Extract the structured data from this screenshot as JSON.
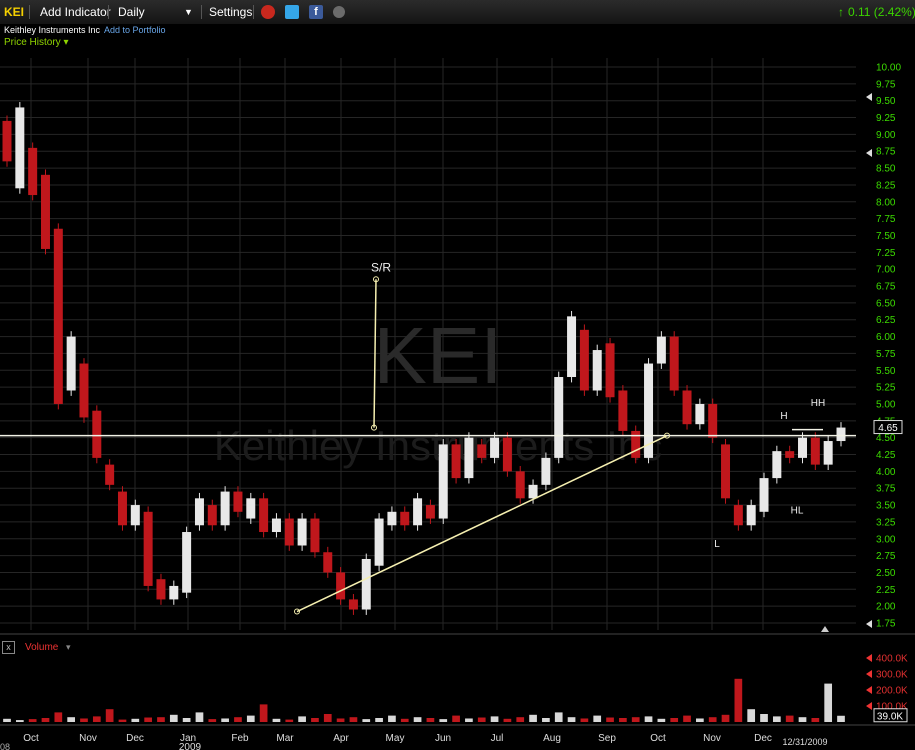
{
  "toolbar": {
    "ticker": "KEI",
    "add_indicator": "Add Indicator",
    "period": "Daily",
    "settings": "Settings",
    "change": "0.11 (2.42%)"
  },
  "company": {
    "name": "Keithley Instruments Inc",
    "add_portfolio": "Add to Portfolio"
  },
  "panel": {
    "price_history": "Price History ▾",
    "volume": "Volume",
    "volume_arrow": "▾",
    "close_icon": "x"
  },
  "watermark": {
    "symbol": "KEI",
    "name": "Keithley Instruments Inc"
  },
  "colors": {
    "up": "#e8e8e8",
    "down": "#c0171c",
    "price_axis": "#3cdc00",
    "volume_axis": "#e03030",
    "trend": "#f5efb0",
    "grid": "#262626"
  },
  "chart_data": {
    "type": "candlestick",
    "x_tick_labels": [
      "Oct",
      "Nov",
      "Dec",
      "Jan",
      "Feb",
      "Mar",
      "Apr",
      "May",
      "Jun",
      "Jul",
      "Aug",
      "Sep",
      "Oct",
      "Nov",
      "Dec"
    ],
    "x_sublabel": "2009",
    "x_left_label": "08",
    "date_label": "12/31/2009",
    "y_ticks": [
      "1.75",
      "2.00",
      "2.25",
      "2.50",
      "2.75",
      "3.00",
      "3.25",
      "3.50",
      "3.75",
      "4.00",
      "4.25",
      "4.50",
      "4.75",
      "5.00",
      "5.25",
      "5.50",
      "5.75",
      "6.00",
      "6.25",
      "6.50",
      "6.75",
      "7.00",
      "7.25",
      "7.50",
      "7.75",
      "8.00",
      "8.25",
      "8.50",
      "8.75",
      "9.00",
      "9.25",
      "9.50",
      "9.75",
      "10.00"
    ],
    "ylim": [
      1.75,
      10.0
    ],
    "last_price": "4.65",
    "volume_ticks": [
      "100.0K",
      "200.0K",
      "300.0K",
      "400.0K"
    ],
    "last_volume": "39.0K",
    "price_series": [
      [
        9.2,
        8.6
      ],
      [
        8.2,
        9.4
      ],
      [
        8.8,
        8.1
      ],
      [
        8.4,
        7.3
      ],
      [
        7.6,
        5.0
      ],
      [
        5.2,
        6.0
      ],
      [
        5.6,
        4.8
      ],
      [
        4.9,
        4.2
      ],
      [
        4.1,
        3.8
      ],
      [
        3.7,
        3.2
      ],
      [
        3.2,
        3.5
      ],
      [
        3.4,
        2.3
      ],
      [
        2.4,
        2.1
      ],
      [
        2.1,
        2.3
      ],
      [
        2.2,
        3.1
      ],
      [
        3.2,
        3.6
      ],
      [
        3.5,
        3.2
      ],
      [
        3.2,
        3.7
      ],
      [
        3.7,
        3.4
      ],
      [
        3.3,
        3.6
      ],
      [
        3.6,
        3.1
      ],
      [
        3.1,
        3.3
      ],
      [
        3.3,
        2.9
      ],
      [
        2.9,
        3.3
      ],
      [
        3.3,
        2.8
      ],
      [
        2.8,
        2.5
      ],
      [
        2.5,
        2.1
      ],
      [
        2.1,
        1.95
      ],
      [
        1.95,
        2.7
      ],
      [
        2.6,
        3.3
      ],
      [
        3.2,
        3.4
      ],
      [
        3.4,
        3.2
      ],
      [
        3.2,
        3.6
      ],
      [
        3.5,
        3.3
      ],
      [
        3.3,
        4.4
      ],
      [
        4.4,
        3.9
      ],
      [
        3.9,
        4.5
      ],
      [
        4.4,
        4.2
      ],
      [
        4.2,
        4.5
      ],
      [
        4.5,
        4.0
      ],
      [
        4.0,
        3.6
      ],
      [
        3.6,
        3.8
      ],
      [
        3.8,
        4.2
      ],
      [
        4.2,
        5.4
      ],
      [
        5.4,
        6.3
      ],
      [
        6.1,
        5.2
      ],
      [
        5.2,
        5.8
      ],
      [
        5.9,
        5.1
      ],
      [
        5.2,
        4.6
      ],
      [
        4.6,
        4.2
      ],
      [
        4.2,
        5.6
      ],
      [
        5.6,
        6.0
      ],
      [
        6.0,
        5.2
      ],
      [
        5.2,
        4.7
      ],
      [
        4.7,
        5.0
      ],
      [
        5.0,
        4.5
      ],
      [
        4.4,
        3.6
      ],
      [
        3.5,
        3.2
      ],
      [
        3.2,
        3.5
      ],
      [
        3.4,
        3.9
      ],
      [
        3.9,
        4.3
      ],
      [
        4.3,
        4.2
      ],
      [
        4.2,
        4.5
      ],
      [
        4.5,
        4.1
      ],
      [
        4.1,
        4.45
      ],
      [
        4.45,
        4.65
      ]
    ],
    "annotations": [
      {
        "text": "S/R",
        "price": 6.85
      },
      {
        "text": "H",
        "price": 4.7
      },
      {
        "text": "HH",
        "price": 4.85
      },
      {
        "text": "HL",
        "price": 3.55
      },
      {
        "text": "L",
        "price": 2.95
      }
    ],
    "sr_line_price": 4.53,
    "trendline": [
      {
        "price": 1.92
      },
      {
        "price": 4.53
      }
    ],
    "volume": [
      20,
      12,
      18,
      25,
      60,
      30,
      22,
      35,
      80,
      15,
      20,
      28,
      30,
      45,
      25,
      60,
      18,
      22,
      30,
      40,
      110,
      20,
      15,
      35,
      25,
      50,
      22,
      30,
      18,
      25,
      40,
      20,
      30,
      25,
      18,
      40,
      22,
      28,
      35,
      20,
      30,
      45,
      25,
      60,
      30,
      22,
      40,
      28,
      25,
      30,
      35,
      20,
      25,
      40,
      22,
      30,
      45,
      270,
      80,
      50,
      35,
      40,
      30,
      25,
      240,
      39
    ]
  }
}
